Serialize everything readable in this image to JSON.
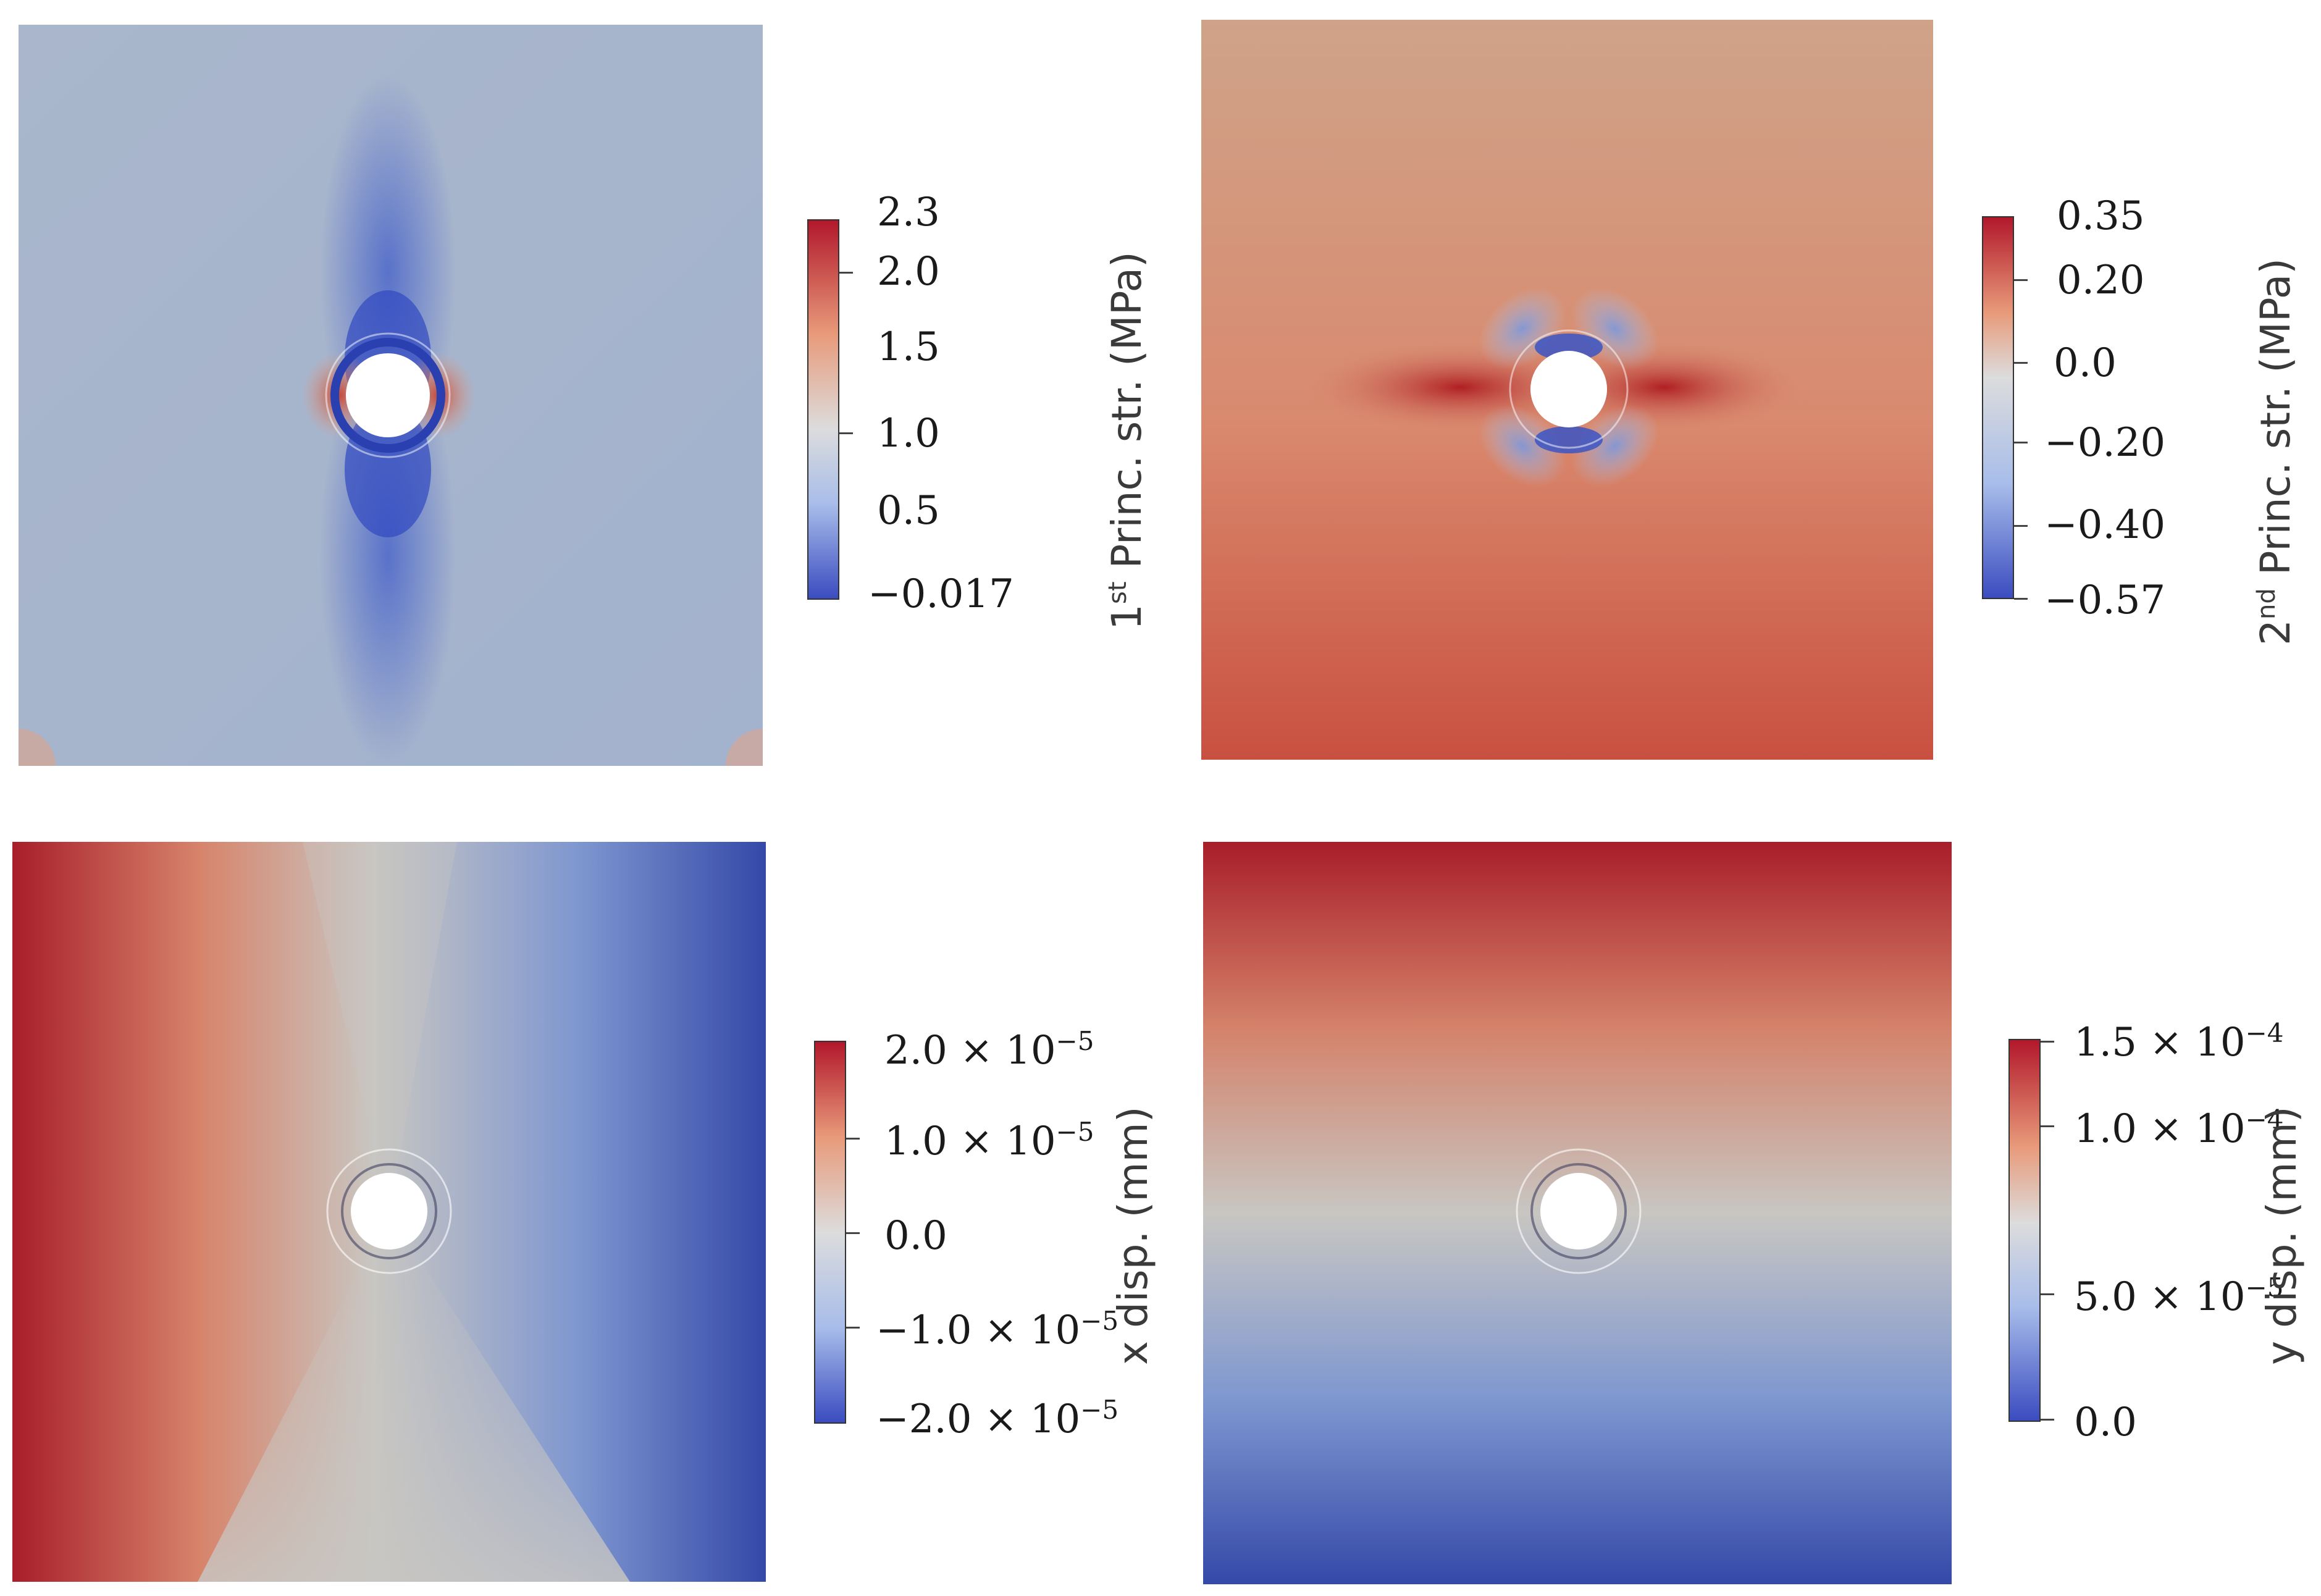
{
  "panels": [
    {
      "id": "first-principal-stress",
      "colorbar": {
        "label_pre": "1",
        "label_sup": "st",
        "label_post": " Princ. str. (MPa)",
        "ticks": [
          {
            "text": "2.3",
            "sup": ""
          },
          {
            "text": "2.0",
            "sup": ""
          },
          {
            "text": "1.5",
            "sup": ""
          },
          {
            "text": "1.0",
            "sup": ""
          },
          {
            "text": "0.5",
            "sup": ""
          },
          {
            "text": "−0.017",
            "sup": ""
          }
        ],
        "colors": [
          "#b2182b",
          "#dcdcdc",
          "#3b4cc0"
        ]
      }
    },
    {
      "id": "second-principal-stress",
      "colorbar": {
        "label_pre": "2",
        "label_sup": "nd",
        "label_post": " Princ. str. (MPa)",
        "ticks": [
          {
            "text": "0.35",
            "sup": ""
          },
          {
            "text": "0.20",
            "sup": ""
          },
          {
            "text": "0.0",
            "sup": ""
          },
          {
            "text": "−0.20",
            "sup": ""
          },
          {
            "text": "−0.40",
            "sup": ""
          },
          {
            "text": "−0.57",
            "sup": ""
          }
        ],
        "colors": [
          "#b2182b",
          "#dcdcdc",
          "#3b4cc0"
        ]
      }
    },
    {
      "id": "x-displacement",
      "colorbar": {
        "label_pre": "x disp. (mm)",
        "label_sup": "",
        "label_post": "",
        "ticks": [
          {
            "text": "2.0 × 10",
            "sup": "−5"
          },
          {
            "text": "1.0 × 10",
            "sup": "−5"
          },
          {
            "text": "0.0",
            "sup": ""
          },
          {
            "text": "−1.0 × 10",
            "sup": "−5"
          },
          {
            "text": "−2.0 × 10",
            "sup": "−5"
          }
        ],
        "colors": [
          "#b2182b",
          "#dcdcdc",
          "#3b4cc0"
        ]
      }
    },
    {
      "id": "y-displacement",
      "colorbar": {
        "label_pre": "y disp. (mm)",
        "label_sup": "",
        "label_post": "",
        "ticks": [
          {
            "text": "1.5 × 10",
            "sup": "−4"
          },
          {
            "text": "1.0 × 10",
            "sup": "−4"
          },
          {
            "text": "5.0 × 10",
            "sup": "−5"
          },
          {
            "text": "0.0",
            "sup": ""
          }
        ],
        "colors": [
          "#b2182b",
          "#dcdcdc",
          "#3b4cc0"
        ]
      }
    }
  ]
}
